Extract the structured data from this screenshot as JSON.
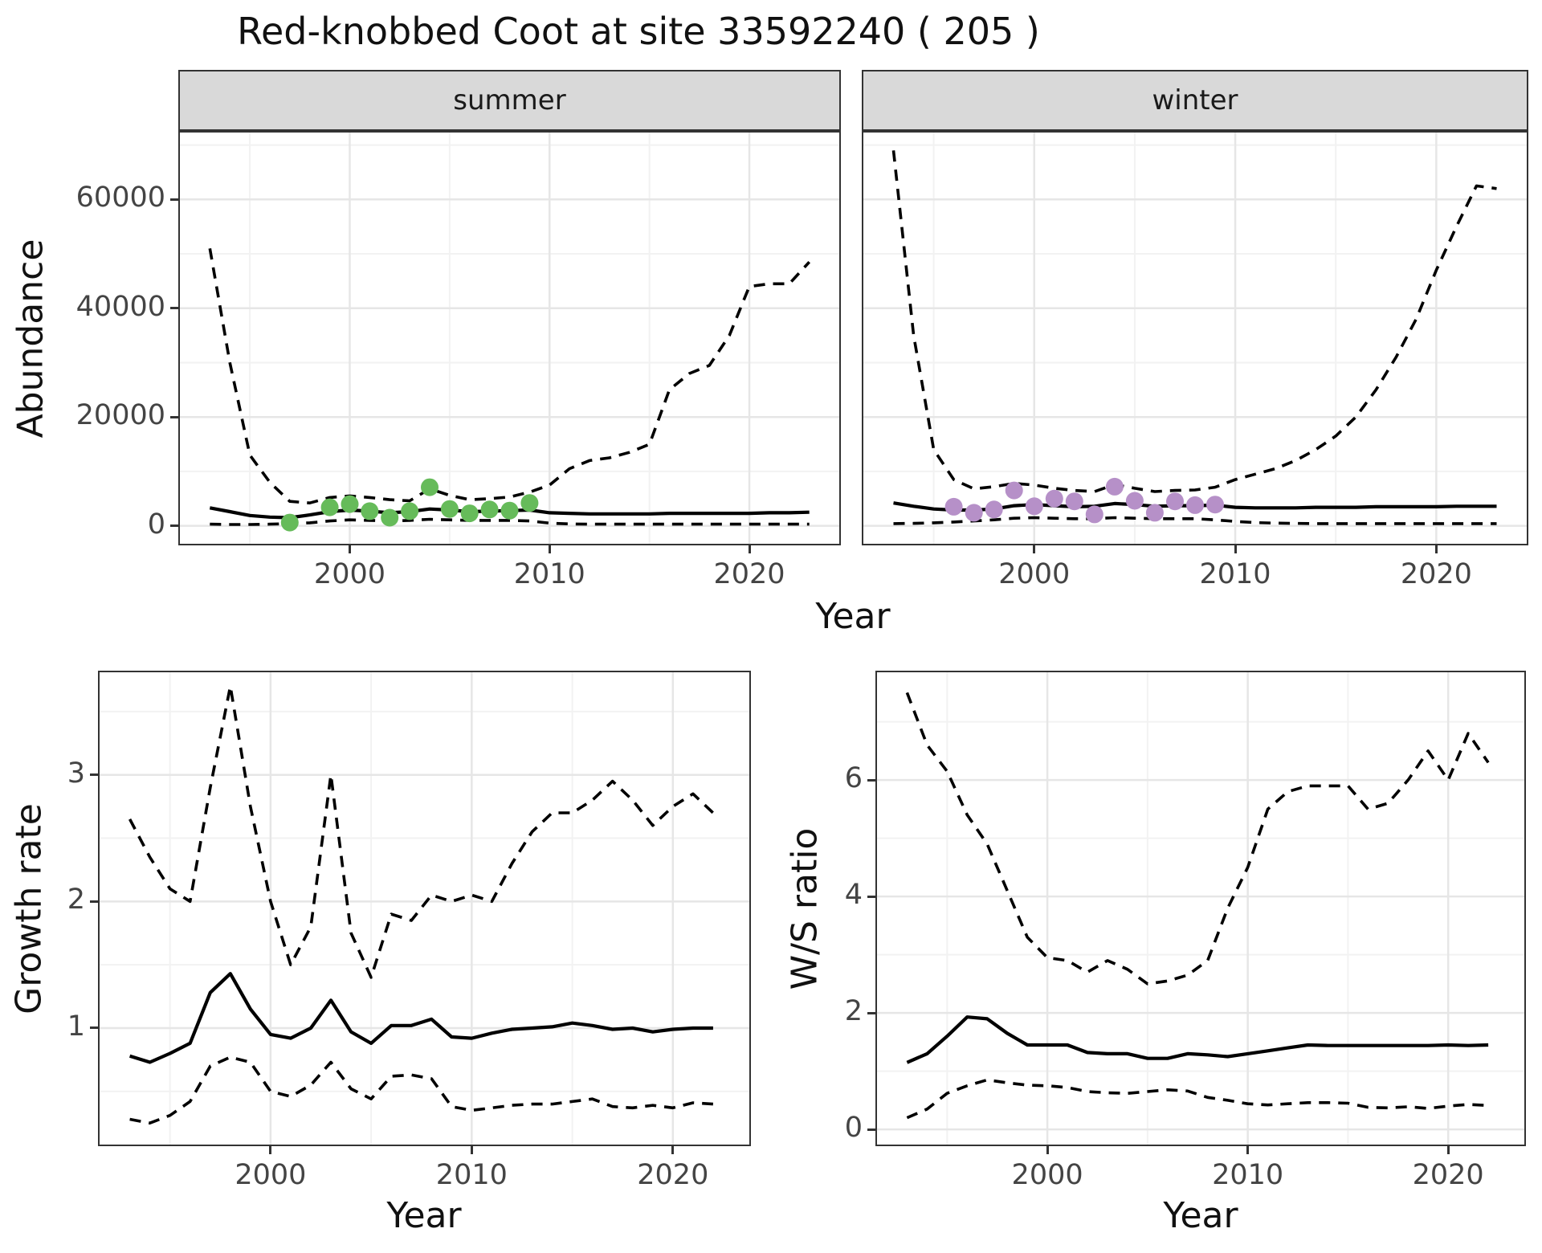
{
  "page": {
    "title": "Red-knobbed Coot at site 33592240 ( 205 )"
  },
  "facets": {
    "summer": "summer",
    "winter": "winter"
  },
  "axis_titles": {
    "abundance": "Abundance",
    "growth_rate": "Growth rate",
    "ws_ratio": "W/S ratio",
    "year": "Year"
  },
  "colors": {
    "summer_points": "#66BB5A",
    "winter_points": "#B690C8",
    "line": "#000000",
    "strip_bg": "#D9D9D9",
    "grid_major": "#E6E6E6",
    "grid_minor": "#F2F2F2",
    "panel_border": "#333333",
    "tick_label": "#444444"
  },
  "chart_data": [
    {
      "id": "abundance-summer",
      "type": "line",
      "facet_label": "summer",
      "xlabel": "Year",
      "ylabel": "Abundance",
      "xlim": [
        1991.5,
        2024.5
      ],
      "ylim": [
        -3300,
        72300
      ],
      "x_major_ticks": [
        2000,
        2010,
        2020
      ],
      "x_tick_labels": [
        "2000",
        "2010",
        "2020"
      ],
      "x_minor_ticks": [
        1995,
        2005,
        2015
      ],
      "y_major_ticks": [
        0,
        20000,
        40000,
        60000
      ],
      "y_tick_labels": [
        "0",
        "20000",
        "40000",
        "60000"
      ],
      "y_minor_ticks": [
        10000,
        30000,
        50000,
        70000
      ],
      "grid": true,
      "legend": "none",
      "years": [
        1993,
        1994,
        1995,
        1996,
        1997,
        1998,
        1999,
        2000,
        2001,
        2002,
        2003,
        2004,
        2005,
        2006,
        2007,
        2008,
        2009,
        2010,
        2011,
        2012,
        2013,
        2014,
        2015,
        2016,
        2017,
        2018,
        2019,
        2020,
        2021,
        2022,
        2023
      ],
      "series": [
        {
          "name": "upper_ci",
          "style": "dashed",
          "values": [
            51000,
            30000,
            13000,
            8000,
            4500,
            4200,
            5200,
            5500,
            5200,
            4800,
            4600,
            6800,
            5600,
            4800,
            5000,
            5300,
            6200,
            7500,
            10500,
            12000,
            12500,
            13500,
            15000,
            25000,
            28000,
            29500,
            35000,
            44000,
            44500,
            44500,
            48500
          ]
        },
        {
          "name": "median",
          "style": "solid",
          "values": [
            3300,
            2600,
            1900,
            1600,
            1500,
            2000,
            2600,
            2900,
            2700,
            2400,
            2600,
            3100,
            2900,
            2600,
            2700,
            2800,
            2900,
            2400,
            2300,
            2200,
            2200,
            2200,
            2200,
            2300,
            2300,
            2300,
            2300,
            2300,
            2400,
            2400,
            2500
          ]
        },
        {
          "name": "lower_ci",
          "style": "dashed",
          "values": [
            300,
            250,
            250,
            300,
            400,
            550,
            900,
            1100,
            1000,
            900,
            1000,
            1200,
            1100,
            1000,
            1000,
            1000,
            900,
            500,
            350,
            300,
            300,
            300,
            300,
            300,
            300,
            300,
            300,
            300,
            300,
            300,
            300
          ]
        }
      ],
      "points": {
        "name": "observed-counts-summer",
        "color_key": "summer_points",
        "years": [
          1997,
          1999,
          2000,
          2001,
          2002,
          2003,
          2004,
          2005,
          2006,
          2007,
          2008,
          2009
        ],
        "values": [
          600,
          3400,
          4000,
          2700,
          1500,
          2700,
          7100,
          3100,
          2300,
          3000,
          2800,
          4200
        ]
      }
    },
    {
      "id": "abundance-winter",
      "type": "line",
      "facet_label": "winter",
      "xlabel": "Year",
      "ylabel": "Abundance",
      "xlim": [
        1991.5,
        2024.5
      ],
      "ylim": [
        -3300,
        72300
      ],
      "x_major_ticks": [
        2000,
        2010,
        2020
      ],
      "x_tick_labels": [
        "2000",
        "2010",
        "2020"
      ],
      "x_minor_ticks": [
        1995,
        2005,
        2015
      ],
      "y_major_ticks": [
        0,
        20000,
        40000,
        60000
      ],
      "y_tick_labels": [
        "0",
        "20000",
        "40000",
        "60000"
      ],
      "y_minor_ticks": [
        10000,
        30000,
        50000,
        70000
      ],
      "grid": true,
      "legend": "none",
      "years": [
        1993,
        1994,
        1995,
        1996,
        1997,
        1998,
        1999,
        2000,
        2001,
        2002,
        2003,
        2004,
        2005,
        2006,
        2007,
        2008,
        2009,
        2010,
        2011,
        2012,
        2013,
        2014,
        2015,
        2016,
        2017,
        2018,
        2019,
        2020,
        2021,
        2022,
        2023
      ],
      "series": [
        {
          "name": "upper_ci",
          "style": "dashed",
          "values": [
            69000,
            35000,
            14000,
            8500,
            6800,
            7200,
            7800,
            7500,
            6900,
            6500,
            6300,
            7600,
            6900,
            6300,
            6500,
            6600,
            7100,
            8500,
            9500,
            10500,
            12000,
            14000,
            16500,
            20000,
            25000,
            31000,
            38000,
            47000,
            55000,
            62500,
            62000
          ]
        },
        {
          "name": "median",
          "style": "solid",
          "values": [
            4200,
            3600,
            3100,
            2900,
            2900,
            3100,
            3700,
            3900,
            3700,
            3500,
            3600,
            4100,
            3900,
            3600,
            3700,
            3700,
            3800,
            3400,
            3300,
            3300,
            3300,
            3400,
            3400,
            3400,
            3500,
            3500,
            3500,
            3500,
            3600,
            3600,
            3600
          ]
        },
        {
          "name": "lower_ci",
          "style": "dashed",
          "values": [
            400,
            450,
            550,
            700,
            900,
            1100,
            1400,
            1500,
            1400,
            1300,
            1300,
            1500,
            1400,
            1300,
            1300,
            1300,
            1100,
            800,
            600,
            500,
            450,
            400,
            400,
            400,
            400,
            400,
            400,
            400,
            400,
            400,
            400
          ]
        }
      ],
      "points": {
        "name": "observed-counts-winter",
        "color_key": "winter_points",
        "years": [
          1996,
          1997,
          1998,
          1999,
          2000,
          2001,
          2002,
          2003,
          2004,
          2005,
          2006,
          2007,
          2008,
          2009
        ],
        "values": [
          3500,
          2400,
          3000,
          6500,
          3600,
          5000,
          4500,
          2100,
          7200,
          4600,
          2400,
          4500,
          3800,
          3900
        ]
      }
    },
    {
      "id": "growth-rate",
      "type": "line",
      "facet_label": "",
      "xlabel": "Year",
      "ylabel": "Growth rate",
      "xlim": [
        1991.5,
        2023.8
      ],
      "ylim": [
        0.08,
        3.81
      ],
      "x_major_ticks": [
        2000,
        2010,
        2020
      ],
      "x_tick_labels": [
        "2000",
        "2010",
        "2020"
      ],
      "x_minor_ticks": [
        1995,
        2005,
        2015
      ],
      "y_major_ticks": [
        1,
        2,
        3
      ],
      "y_tick_labels": [
        "1",
        "2",
        "3"
      ],
      "y_minor_ticks": [
        0.5,
        1.5,
        2.5,
        3.5
      ],
      "grid": true,
      "legend": "none",
      "years": [
        1993,
        1994,
        1995,
        1996,
        1997,
        1998,
        1999,
        2000,
        2001,
        2002,
        2003,
        2004,
        2005,
        2006,
        2007,
        2008,
        2009,
        2010,
        2011,
        2012,
        2013,
        2014,
        2015,
        2016,
        2017,
        2018,
        2019,
        2020,
        2021,
        2022
      ],
      "series": [
        {
          "name": "upper_ci",
          "style": "dashed",
          "values": [
            2.65,
            2.35,
            2.1,
            2.0,
            2.9,
            3.7,
            2.75,
            2.0,
            1.5,
            1.8,
            3.0,
            1.75,
            1.4,
            1.9,
            1.85,
            2.05,
            2.0,
            2.05,
            2.0,
            2.3,
            2.55,
            2.7,
            2.7,
            2.8,
            2.95,
            2.8,
            2.6,
            2.75,
            2.85,
            2.7
          ]
        },
        {
          "name": "median",
          "style": "solid",
          "values": [
            0.78,
            0.73,
            0.8,
            0.88,
            1.28,
            1.43,
            1.15,
            0.95,
            0.92,
            1.0,
            1.22,
            0.97,
            0.88,
            1.02,
            1.02,
            1.07,
            0.93,
            0.92,
            0.96,
            0.99,
            1.0,
            1.01,
            1.04,
            1.02,
            0.99,
            1.0,
            0.97,
            0.99,
            1.0,
            1.0
          ]
        },
        {
          "name": "lower_ci",
          "style": "dashed",
          "values": [
            0.28,
            0.25,
            0.31,
            0.42,
            0.7,
            0.77,
            0.73,
            0.5,
            0.46,
            0.55,
            0.73,
            0.52,
            0.44,
            0.62,
            0.63,
            0.6,
            0.38,
            0.35,
            0.37,
            0.39,
            0.4,
            0.4,
            0.42,
            0.44,
            0.38,
            0.37,
            0.39,
            0.37,
            0.41,
            0.4
          ]
        }
      ],
      "points": null
    },
    {
      "id": "ws-ratio",
      "type": "line",
      "facet_label": "",
      "xlabel": "Year",
      "ylabel": "W/S ratio",
      "xlim": [
        1991.5,
        2023.8
      ],
      "ylim": [
        -0.26,
        7.85
      ],
      "x_major_ticks": [
        2000,
        2010,
        2020
      ],
      "x_tick_labels": [
        "2000",
        "2010",
        "2020"
      ],
      "x_minor_ticks": [
        1995,
        2005,
        2015
      ],
      "y_major_ticks": [
        0,
        2,
        4,
        6
      ],
      "y_tick_labels": [
        "0",
        "2",
        "4",
        "6"
      ],
      "y_minor_ticks": [
        1,
        3,
        5,
        7
      ],
      "grid": true,
      "legend": "none",
      "years": [
        1993,
        1994,
        1995,
        1996,
        1997,
        1998,
        1999,
        2000,
        2001,
        2002,
        2003,
        2004,
        2005,
        2006,
        2007,
        2008,
        2009,
        2010,
        2011,
        2012,
        2013,
        2014,
        2015,
        2016,
        2017,
        2018,
        2019,
        2020,
        2021,
        2022
      ],
      "series": [
        {
          "name": "upper_ci",
          "style": "dashed",
          "values": [
            7.5,
            6.6,
            6.15,
            5.4,
            4.9,
            4.1,
            3.3,
            2.95,
            2.9,
            2.7,
            2.9,
            2.75,
            2.5,
            2.55,
            2.65,
            2.9,
            3.8,
            4.5,
            5.5,
            5.8,
            5.9,
            5.9,
            5.9,
            5.5,
            5.6,
            6.0,
            6.5,
            6.0,
            6.8,
            6.3
          ]
        },
        {
          "name": "median",
          "style": "solid",
          "values": [
            1.15,
            1.3,
            1.6,
            1.93,
            1.9,
            1.65,
            1.45,
            1.45,
            1.45,
            1.32,
            1.3,
            1.3,
            1.22,
            1.22,
            1.3,
            1.28,
            1.25,
            1.3,
            1.35,
            1.4,
            1.45,
            1.44,
            1.44,
            1.44,
            1.44,
            1.44,
            1.44,
            1.45,
            1.44,
            1.45
          ]
        },
        {
          "name": "lower_ci",
          "style": "dashed",
          "values": [
            0.2,
            0.35,
            0.62,
            0.75,
            0.85,
            0.8,
            0.76,
            0.75,
            0.72,
            0.65,
            0.63,
            0.62,
            0.65,
            0.68,
            0.66,
            0.55,
            0.5,
            0.44,
            0.42,
            0.44,
            0.46,
            0.46,
            0.45,
            0.38,
            0.37,
            0.39,
            0.36,
            0.4,
            0.43,
            0.41
          ]
        }
      ],
      "points": null
    }
  ]
}
